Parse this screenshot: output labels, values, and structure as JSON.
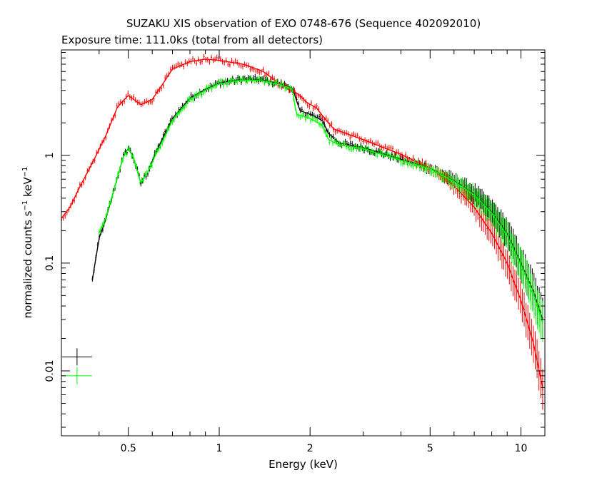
{
  "chart_data": {
    "type": "line",
    "title": "SUZAKU XIS observation of EXO 0748-676 (Sequence 402092010)",
    "subtitle": "Exposure time: 111.0ks (total from all detectors)",
    "xlabel": "Energy (keV)",
    "ylabel_main": "normalized counts s",
    "ylabel_sup1": "−1",
    "ylabel_mid": " keV",
    "ylabel_sup2": "−1",
    "x_scale": "log",
    "y_scale": "log",
    "xlim": [
      0.3,
      12
    ],
    "ylim": [
      0.0025,
      9.5
    ],
    "x_ticks": [
      {
        "value": 0.5,
        "label": "0.5"
      },
      {
        "value": 1,
        "label": "1"
      },
      {
        "value": 2,
        "label": "2"
      },
      {
        "value": 5,
        "label": "5"
      },
      {
        "value": 10,
        "label": "10"
      }
    ],
    "y_ticks": [
      {
        "value": 0.01,
        "label": "0.01"
      },
      {
        "value": 0.1,
        "label": "0.1"
      },
      {
        "value": 1,
        "label": "1"
      }
    ],
    "grid": false,
    "legend": "none",
    "series": [
      {
        "color": "#000000",
        "x": [
          0.38,
          0.39,
          0.4,
          0.42,
          0.45,
          0.48,
          0.5,
          0.52,
          0.55,
          0.58,
          0.62,
          0.7,
          0.8,
          0.9,
          1.0,
          1.2,
          1.4,
          1.6,
          1.75,
          1.85,
          2.0,
          2.2,
          2.3,
          2.5,
          3.0,
          4.0,
          5.0,
          6.0,
          7.0,
          8.0,
          9.0,
          10.0,
          11.0,
          11.8
        ],
        "y": [
          0.07,
          0.11,
          0.17,
          0.25,
          0.5,
          0.95,
          1.18,
          0.95,
          0.55,
          0.7,
          1.1,
          2.2,
          3.4,
          4.1,
          4.7,
          5.1,
          5.0,
          4.6,
          4.2,
          2.6,
          2.4,
          2.1,
          1.6,
          1.3,
          1.18,
          0.92,
          0.76,
          0.58,
          0.44,
          0.3,
          0.19,
          0.1,
          0.055,
          0.03
        ]
      },
      {
        "color": "#ff0000",
        "x": [
          0.3,
          0.32,
          0.35,
          0.38,
          0.42,
          0.46,
          0.5,
          0.52,
          0.55,
          0.6,
          0.65,
          0.7,
          0.8,
          0.9,
          1.0,
          1.2,
          1.4,
          1.6,
          1.75,
          1.85,
          1.95,
          2.1,
          2.25,
          2.4,
          3.0,
          4.0,
          5.0,
          6.0,
          7.0,
          8.0,
          9.0,
          10.0,
          11.0,
          11.8
        ],
        "y": [
          0.26,
          0.33,
          0.55,
          0.85,
          1.5,
          2.8,
          3.6,
          3.3,
          2.95,
          3.3,
          4.6,
          6.3,
          7.4,
          7.8,
          7.6,
          7.0,
          6.0,
          4.5,
          4.0,
          3.6,
          3.1,
          2.75,
          2.15,
          1.75,
          1.4,
          1.02,
          0.76,
          0.52,
          0.33,
          0.19,
          0.1,
          0.045,
          0.018,
          0.007
        ]
      },
      {
        "color": "#00ff00",
        "x": [
          0.4,
          0.42,
          0.45,
          0.48,
          0.5,
          0.52,
          0.55,
          0.58,
          0.62,
          0.7,
          0.8,
          0.9,
          1.0,
          1.2,
          1.4,
          1.6,
          1.75,
          1.8,
          1.9,
          2.0,
          2.2,
          2.3,
          2.5,
          3.0,
          4.0,
          5.0,
          6.0,
          7.0,
          8.0,
          9.0,
          10.0,
          11.0,
          11.8
        ],
        "y": [
          0.19,
          0.26,
          0.5,
          0.95,
          1.15,
          0.95,
          0.55,
          0.7,
          1.05,
          2.1,
          3.3,
          4.0,
          4.6,
          5.0,
          4.9,
          4.5,
          4.1,
          2.4,
          2.3,
          2.2,
          1.9,
          1.4,
          1.25,
          1.15,
          0.9,
          0.75,
          0.57,
          0.43,
          0.29,
          0.18,
          0.095,
          0.05,
          0.028
        ]
      }
    ],
    "error_markers": [
      {
        "color": "#000000",
        "x": 0.338,
        "y": 0.0135
      },
      {
        "color": "#00ff00",
        "x": 0.338,
        "y": 0.009
      }
    ]
  }
}
